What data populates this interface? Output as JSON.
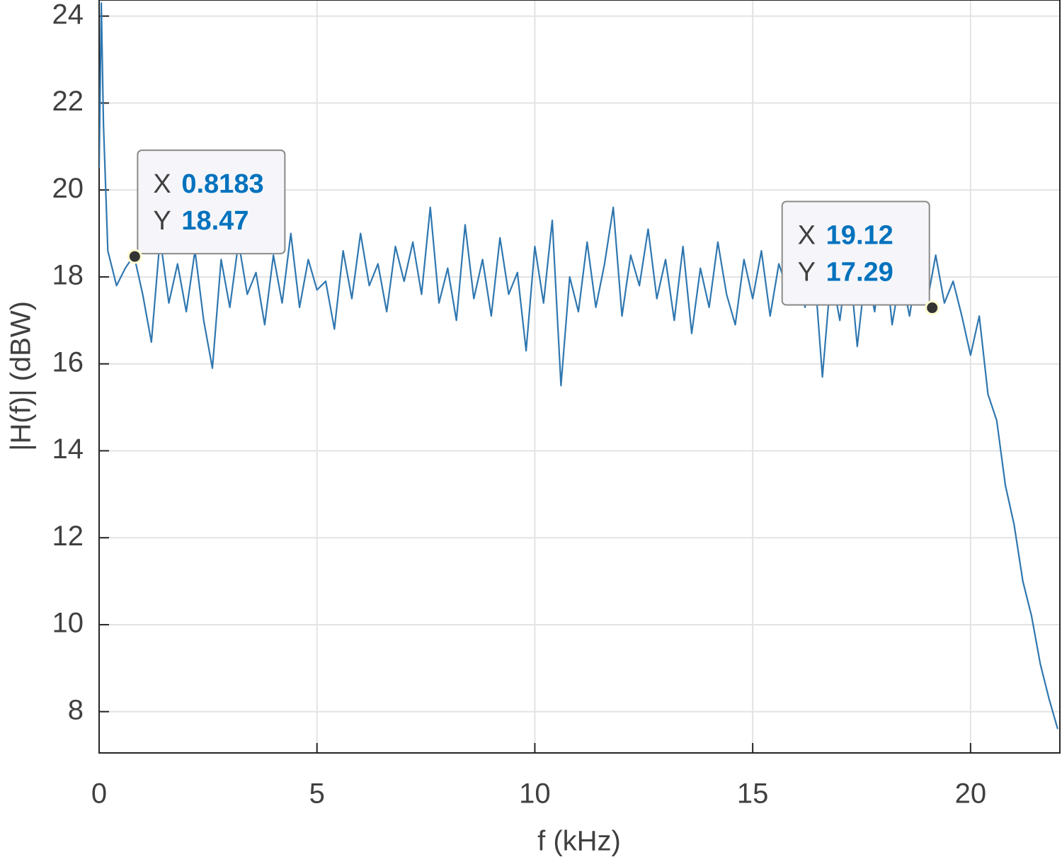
{
  "chart_data": {
    "type": "line",
    "xlabel": "f (kHz)",
    "ylabel": "|H(f)| (dBW)",
    "xlim": [
      0,
      22.05
    ],
    "ylim": [
      7.05,
      24.37
    ],
    "xticks": [
      0,
      5,
      10,
      15,
      20
    ],
    "yticks": [
      8,
      10,
      12,
      14,
      16,
      18,
      20,
      22,
      24
    ],
    "grid": true,
    "series": [
      {
        "color": "#2f77b0",
        "x": [
          0,
          0.05,
          0.1,
          0.2,
          0.4,
          0.6,
          0.8,
          1.0,
          1.2,
          1.4,
          1.6,
          1.8,
          2.0,
          2.2,
          2.4,
          2.6,
          2.8,
          3.0,
          3.2,
          3.4,
          3.6,
          3.8,
          4.0,
          4.2,
          4.4,
          4.6,
          4.8,
          5.0,
          5.2,
          5.4,
          5.6,
          5.8,
          6.0,
          6.2,
          6.4,
          6.6,
          6.8,
          7.0,
          7.2,
          7.4,
          7.6,
          7.8,
          8.0,
          8.2,
          8.4,
          8.6,
          8.8,
          9.0,
          9.2,
          9.4,
          9.6,
          9.8,
          10.0,
          10.2,
          10.4,
          10.6,
          10.8,
          11.0,
          11.2,
          11.4,
          11.6,
          11.8,
          12.0,
          12.2,
          12.4,
          12.6,
          12.8,
          13.0,
          13.2,
          13.4,
          13.6,
          13.8,
          14.0,
          14.2,
          14.4,
          14.6,
          14.8,
          15.0,
          15.2,
          15.4,
          15.6,
          15.8,
          16.0,
          16.2,
          16.4,
          16.6,
          16.8,
          17.0,
          17.2,
          17.4,
          17.6,
          17.8,
          18.0,
          18.2,
          18.4,
          18.6,
          18.8,
          19.0,
          19.2,
          19.4,
          19.6,
          19.8,
          20.0,
          20.2,
          20.4,
          20.6,
          20.8,
          21.0,
          21.2,
          21.4,
          21.6,
          21.8,
          22.0
        ],
        "values": [
          20.5,
          24.3,
          21.5,
          18.6,
          17.8,
          18.2,
          18.5,
          17.6,
          16.5,
          18.9,
          17.4,
          18.3,
          17.2,
          18.6,
          17.0,
          15.9,
          18.4,
          17.3,
          18.8,
          17.6,
          18.1,
          16.9,
          18.5,
          17.4,
          19.0,
          17.3,
          18.4,
          17.7,
          17.9,
          16.8,
          18.6,
          17.5,
          19.0,
          17.8,
          18.3,
          17.2,
          18.7,
          17.9,
          18.8,
          17.6,
          19.6,
          17.4,
          18.2,
          17.0,
          19.2,
          17.5,
          18.4,
          17.1,
          18.9,
          17.6,
          18.1,
          16.3,
          18.7,
          17.4,
          19.3,
          15.5,
          18.0,
          17.2,
          18.8,
          17.3,
          18.3,
          19.6,
          17.1,
          18.5,
          17.8,
          19.1,
          17.5,
          18.4,
          17.0,
          18.7,
          16.7,
          18.2,
          17.3,
          18.8,
          17.6,
          16.9,
          18.4,
          17.5,
          18.6,
          17.1,
          18.3,
          17.7,
          19.0,
          17.3,
          18.4,
          15.7,
          18.1,
          17.0,
          18.6,
          16.4,
          18.2,
          17.2,
          18.9,
          16.9,
          18.1,
          17.1,
          18.4,
          17.4,
          18.5,
          17.4,
          17.9,
          17.1,
          16.2,
          17.1,
          15.3,
          14.7,
          13.2,
          12.3,
          11.0,
          10.2,
          9.1,
          8.3,
          7.6
        ]
      }
    ],
    "datatips": [
      {
        "x_label": "X",
        "x": 0.8183,
        "y_label": "Y",
        "y": 18.47
      },
      {
        "x_label": "X",
        "x": 19.12,
        "y_label": "Y",
        "y": 17.29
      }
    ]
  }
}
